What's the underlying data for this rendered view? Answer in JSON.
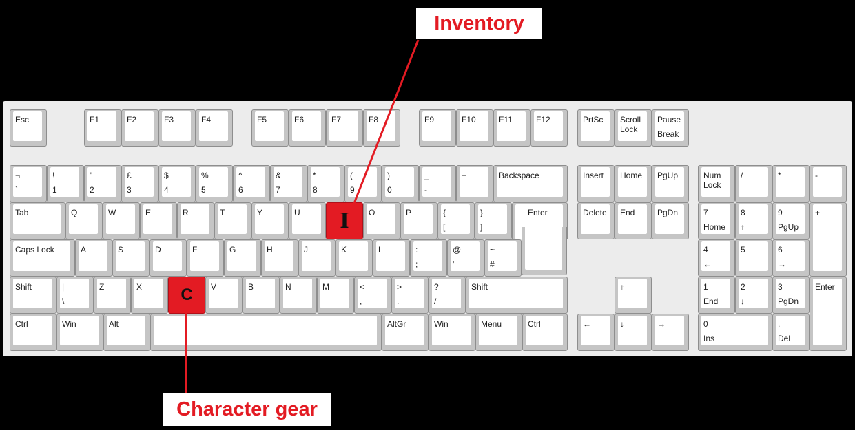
{
  "callouts": {
    "inventory": "Inventory",
    "character_gear": "Character gear"
  },
  "colors": {
    "highlight": "#e31b23",
    "background": "#000000",
    "keyboard": "#ececec"
  },
  "highlighted_keys": [
    {
      "key": "I",
      "label": "I",
      "callout": "Inventory"
    },
    {
      "key": "C",
      "label": "C",
      "callout": "Character gear"
    }
  ],
  "keys": [
    {
      "id": "esc",
      "l1": "Esc"
    },
    {
      "id": "f1",
      "l1": "F1"
    },
    {
      "id": "f2",
      "l1": "F2"
    },
    {
      "id": "f3",
      "l1": "F3"
    },
    {
      "id": "f4",
      "l1": "F4"
    },
    {
      "id": "f5",
      "l1": "F5"
    },
    {
      "id": "f6",
      "l1": "F6"
    },
    {
      "id": "f7",
      "l1": "F7"
    },
    {
      "id": "f8",
      "l1": "F8"
    },
    {
      "id": "f9",
      "l1": "F9"
    },
    {
      "id": "f10",
      "l1": "F10"
    },
    {
      "id": "f11",
      "l1": "F11"
    },
    {
      "id": "f12",
      "l1": "F12"
    },
    {
      "id": "prtsc",
      "l1": "PrtSc"
    },
    {
      "id": "scroll-lock",
      "l1": "Scroll",
      "l2": "Lock"
    },
    {
      "id": "pause",
      "l1": "Pause",
      "lb": "Break"
    },
    {
      "id": "backtick",
      "l1": "¬",
      "lb": "`"
    },
    {
      "id": "1",
      "l1": "!",
      "lb": "1"
    },
    {
      "id": "2",
      "l1": "\"",
      "lb": "2"
    },
    {
      "id": "3",
      "l1": "£",
      "lb": "3"
    },
    {
      "id": "4",
      "l1": "$",
      "lb": "4"
    },
    {
      "id": "5",
      "l1": "%",
      "lb": "5"
    },
    {
      "id": "6",
      "l1": "^",
      "lb": "6"
    },
    {
      "id": "7",
      "l1": "&",
      "lb": "7"
    },
    {
      "id": "8",
      "l1": "*",
      "lb": "8"
    },
    {
      "id": "9",
      "l1": "(",
      "lb": "9"
    },
    {
      "id": "0",
      "l1": ")",
      "lb": "0"
    },
    {
      "id": "minus",
      "l1": "_",
      "lb": "-"
    },
    {
      "id": "equals",
      "l1": "+",
      "lb": "="
    },
    {
      "id": "backspace",
      "l1": "Backspace"
    },
    {
      "id": "insert",
      "l1": "Insert"
    },
    {
      "id": "home",
      "l1": "Home"
    },
    {
      "id": "pgup",
      "l1": "PgUp"
    },
    {
      "id": "numlock",
      "l1": "Num",
      "l2": "Lock"
    },
    {
      "id": "num-divide",
      "l1": "/"
    },
    {
      "id": "num-multiply",
      "l1": "*"
    },
    {
      "id": "num-minus",
      "l1": "-"
    },
    {
      "id": "tab",
      "l1": "Tab"
    },
    {
      "id": "q",
      "l1": "Q"
    },
    {
      "id": "w",
      "l1": "W"
    },
    {
      "id": "e",
      "l1": "E"
    },
    {
      "id": "r",
      "l1": "R"
    },
    {
      "id": "t",
      "l1": "T"
    },
    {
      "id": "y",
      "l1": "Y"
    },
    {
      "id": "u",
      "l1": "U"
    },
    {
      "id": "i",
      "big": "I"
    },
    {
      "id": "o",
      "l1": "O"
    },
    {
      "id": "p",
      "l1": "P"
    },
    {
      "id": "lbracket",
      "l1": "{",
      "lb": "["
    },
    {
      "id": "rbracket",
      "l1": "}",
      "lb": "]"
    },
    {
      "id": "enter",
      "l1": "Enter"
    },
    {
      "id": "delete",
      "l1": "Delete"
    },
    {
      "id": "end",
      "l1": "End"
    },
    {
      "id": "pgdn",
      "l1": "PgDn"
    },
    {
      "id": "num7",
      "l1": "7",
      "lb": "Home"
    },
    {
      "id": "num8",
      "l1": "8",
      "lb": "↑"
    },
    {
      "id": "num9",
      "l1": "9",
      "lb": "PgUp"
    },
    {
      "id": "num-plus",
      "l1": "+"
    },
    {
      "id": "capslock",
      "l1": "Caps Lock"
    },
    {
      "id": "a",
      "l1": "A"
    },
    {
      "id": "s",
      "l1": "S"
    },
    {
      "id": "d",
      "l1": "D"
    },
    {
      "id": "f",
      "l1": "F"
    },
    {
      "id": "g",
      "l1": "G"
    },
    {
      "id": "h",
      "l1": "H"
    },
    {
      "id": "j",
      "l1": "J"
    },
    {
      "id": "k",
      "l1": "K"
    },
    {
      "id": "l",
      "l1": "L"
    },
    {
      "id": "semicolon",
      "l1": ":",
      "lb": ";"
    },
    {
      "id": "quote",
      "l1": "@",
      "lb": "'"
    },
    {
      "id": "hash",
      "l1": "~",
      "lb": "#"
    },
    {
      "id": "num4",
      "l1": "4",
      "lb": "←"
    },
    {
      "id": "num5",
      "l1": "5"
    },
    {
      "id": "num6",
      "l1": "6",
      "lb": "→"
    },
    {
      "id": "lshift",
      "l1": "Shift"
    },
    {
      "id": "backslash",
      "l1": "|",
      "lb": "\\"
    },
    {
      "id": "z",
      "l1": "Z"
    },
    {
      "id": "x",
      "l1": "X"
    },
    {
      "id": "c",
      "big": "C"
    },
    {
      "id": "v",
      "l1": "V"
    },
    {
      "id": "b",
      "l1": "B"
    },
    {
      "id": "n",
      "l1": "N"
    },
    {
      "id": "m",
      "l1": "M"
    },
    {
      "id": "comma",
      "l1": "<",
      "lb": ","
    },
    {
      "id": "period",
      "l1": ">",
      "lb": "."
    },
    {
      "id": "slash",
      "l1": "?",
      "lb": "/"
    },
    {
      "id": "rshift",
      "l1": "Shift"
    },
    {
      "id": "up",
      "l1": "↑"
    },
    {
      "id": "num1",
      "l1": "1",
      "lb": "End"
    },
    {
      "id": "num2",
      "l1": "2",
      "lb": "↓"
    },
    {
      "id": "num3",
      "l1": "3",
      "lb": "PgDn"
    },
    {
      "id": "num-enter",
      "l1": "Enter"
    },
    {
      "id": "lctrl",
      "l1": "Ctrl"
    },
    {
      "id": "lwin",
      "l1": "Win"
    },
    {
      "id": "alt",
      "l1": "Alt"
    },
    {
      "id": "space"
    },
    {
      "id": "altgr",
      "l1": "AltGr"
    },
    {
      "id": "rwin",
      "l1": "Win"
    },
    {
      "id": "menu",
      "l1": "Menu"
    },
    {
      "id": "rctrl",
      "l1": "Ctrl"
    },
    {
      "id": "left",
      "l1": "←"
    },
    {
      "id": "down",
      "l1": "↓"
    },
    {
      "id": "right",
      "l1": "→"
    },
    {
      "id": "num0",
      "l1": "0",
      "lb": "Ins"
    },
    {
      "id": "num-decimal",
      "l1": ".",
      "lb": "Del"
    }
  ]
}
